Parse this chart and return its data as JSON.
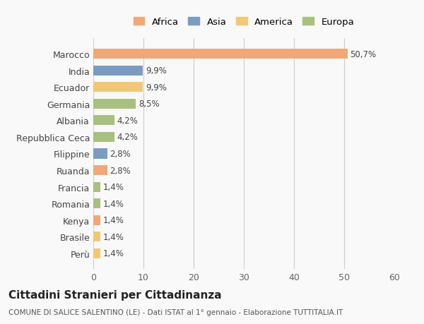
{
  "categories": [
    "Marocco",
    "India",
    "Ecuador",
    "Germania",
    "Albania",
    "Repubblica Ceca",
    "Filippine",
    "Ruanda",
    "Francia",
    "Romania",
    "Kenya",
    "Brasile",
    "Perù"
  ],
  "values": [
    50.7,
    9.9,
    9.9,
    8.5,
    4.2,
    4.2,
    2.8,
    2.8,
    1.4,
    1.4,
    1.4,
    1.4,
    1.4
  ],
  "continents": [
    "Africa",
    "Asia",
    "America",
    "Europa",
    "Europa",
    "Europa",
    "Asia",
    "Africa",
    "Europa",
    "Europa",
    "Africa",
    "America",
    "America"
  ],
  "continent_colors": {
    "Africa": "#F0A878",
    "Asia": "#7B9CC0",
    "America": "#F0C878",
    "Europa": "#A8C080"
  },
  "labels": [
    "50,7%",
    "9,9%",
    "9,9%",
    "8,5%",
    "4,2%",
    "4,2%",
    "2,8%",
    "2,8%",
    "1,4%",
    "1,4%",
    "1,4%",
    "1,4%",
    "1,4%"
  ],
  "xlim": [
    0,
    60
  ],
  "xticks": [
    0,
    10,
    20,
    30,
    40,
    50,
    60
  ],
  "title": "Cittadini Stranieri per Cittadinanza",
  "subtitle": "COMUNE DI SALICE SALENTINO (LE) - Dati ISTAT al 1° gennaio - Elaborazione TUTTITALIA.IT",
  "legend_order": [
    "Africa",
    "Asia",
    "America",
    "Europa"
  ],
  "background_color": "#f9f9f9",
  "bar_height": 0.6,
  "grid_color": "#cccccc"
}
